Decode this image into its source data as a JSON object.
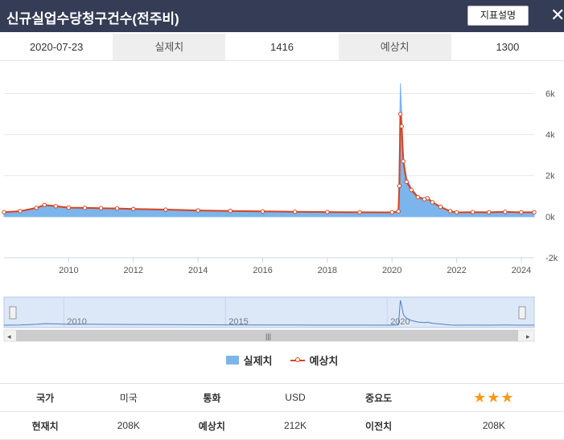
{
  "header": {
    "title": "신규실업수당청구건수(전주비)",
    "desc_button": "지표설명",
    "close_glyph": "✕"
  },
  "info": {
    "date": "2020-07-23",
    "actual_label": "실제치",
    "actual_value": "1416",
    "forecast_label": "예상치",
    "forecast_value": "1300"
  },
  "navigator": {
    "labels": [
      "2010",
      "2015",
      "2020"
    ]
  },
  "chart_data": {
    "type": "area",
    "y_ticks": [
      "6k",
      "4k",
      "2k",
      "0k",
      "-2k"
    ],
    "x_ticks": [
      "2010",
      "2012",
      "2014",
      "2016",
      "2018",
      "2020",
      "2022",
      "2024"
    ],
    "ylim": [
      -2000,
      6800
    ],
    "xlim": [
      2008.0,
      2024.4
    ],
    "grid": true,
    "legend_position": "bottom",
    "series": [
      {
        "name": "실제치",
        "kind": "area",
        "color": "#7cb5ec",
        "points": [
          [
            2008.0,
            200
          ],
          [
            2008.5,
            250
          ],
          [
            2009.0,
            420
          ],
          [
            2009.25,
            580
          ],
          [
            2009.6,
            520
          ],
          [
            2010.0,
            430
          ],
          [
            2010.5,
            440
          ],
          [
            2011.0,
            420
          ],
          [
            2011.5,
            410
          ],
          [
            2012.0,
            380
          ],
          [
            2013.0,
            350
          ],
          [
            2014.0,
            310
          ],
          [
            2015.0,
            280
          ],
          [
            2016.0,
            260
          ],
          [
            2017.0,
            245
          ],
          [
            2018.0,
            220
          ],
          [
            2019.0,
            215
          ],
          [
            2020.0,
            210
          ],
          [
            2020.2,
            280
          ],
          [
            2020.23,
            3300
          ],
          [
            2020.26,
            6500
          ],
          [
            2020.3,
            5200
          ],
          [
            2020.35,
            2900
          ],
          [
            2020.45,
            1900
          ],
          [
            2020.6,
            1400
          ],
          [
            2020.8,
            1000
          ],
          [
            2021.0,
            880
          ],
          [
            2021.1,
            950
          ],
          [
            2021.25,
            700
          ],
          [
            2021.5,
            500
          ],
          [
            2021.8,
            260
          ],
          [
            2022.0,
            200
          ],
          [
            2022.5,
            230
          ],
          [
            2023.0,
            210
          ],
          [
            2023.5,
            240
          ],
          [
            2024.0,
            210
          ],
          [
            2024.4,
            208
          ]
        ]
      },
      {
        "name": "예상치",
        "kind": "line",
        "color": "#d9421f",
        "points": [
          [
            2008.0,
            220
          ],
          [
            2008.5,
            270
          ],
          [
            2009.0,
            430
          ],
          [
            2009.25,
            570
          ],
          [
            2009.6,
            510
          ],
          [
            2010.0,
            440
          ],
          [
            2010.5,
            430
          ],
          [
            2011.0,
            415
          ],
          [
            2011.5,
            400
          ],
          [
            2012.0,
            375
          ],
          [
            2013.0,
            345
          ],
          [
            2014.0,
            305
          ],
          [
            2015.0,
            280
          ],
          [
            2016.0,
            258
          ],
          [
            2017.0,
            240
          ],
          [
            2018.0,
            225
          ],
          [
            2019.0,
            212
          ],
          [
            2020.0,
            210
          ],
          [
            2020.2,
            260
          ],
          [
            2020.23,
            1500
          ],
          [
            2020.26,
            5000
          ],
          [
            2020.3,
            4400
          ],
          [
            2020.35,
            2700
          ],
          [
            2020.45,
            1700
          ],
          [
            2020.6,
            1300
          ],
          [
            2020.8,
            950
          ],
          [
            2021.0,
            850
          ],
          [
            2021.1,
            900
          ],
          [
            2021.25,
            700
          ],
          [
            2021.5,
            480
          ],
          [
            2021.8,
            270
          ],
          [
            2022.0,
            210
          ],
          [
            2022.5,
            220
          ],
          [
            2023.0,
            215
          ],
          [
            2023.5,
            235
          ],
          [
            2024.0,
            212
          ],
          [
            2024.4,
            212
          ]
        ]
      }
    ]
  },
  "meta": {
    "country_label": "국가",
    "country_value": "미국",
    "currency_label": "통화",
    "currency_value": "USD",
    "importance_label": "중요도",
    "importance_stars": "★★★",
    "importance_level": 3,
    "current_label": "현재치",
    "current_value": "208K",
    "forecast_label": "예상치",
    "forecast_value": "212K",
    "previous_label": "이전치",
    "previous_value": "208K"
  }
}
